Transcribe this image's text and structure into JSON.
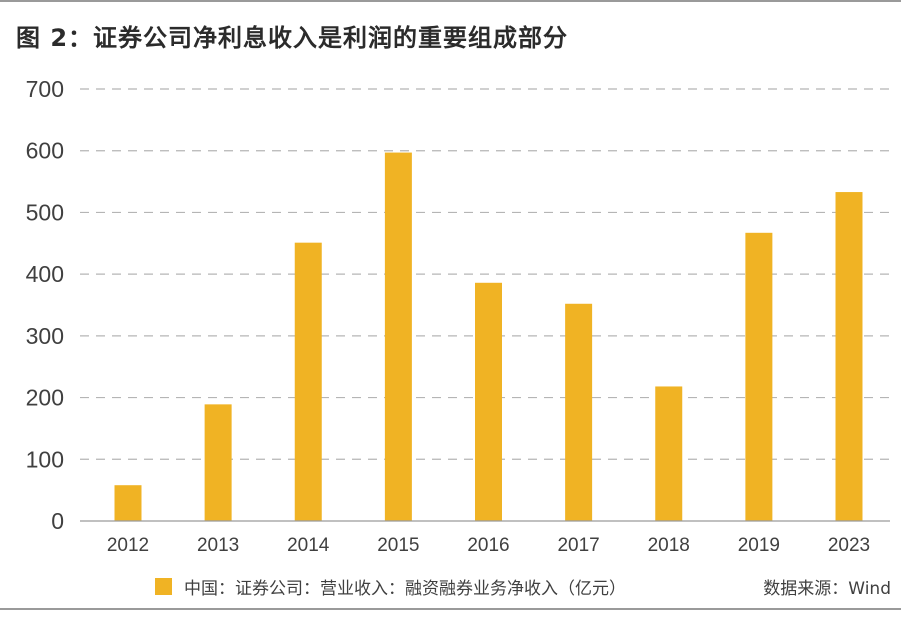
{
  "title": "图 2：证券公司净利息收入是利润的重要组成部分",
  "legend_label": "中国：证券公司：营业收入：融资融券业务净收入（亿元）",
  "source": "数据来源：Wind",
  "colors": {
    "bar": "#F0B324",
    "grid": "#b5b5b5",
    "axis": "#9a9a9a"
  },
  "chart_data": {
    "type": "bar",
    "title": "图 2：证券公司净利息收入是利润的重要组成部分",
    "xlabel": "",
    "ylabel": "",
    "categories": [
      "2012",
      "2013",
      "2014",
      "2015",
      "2016",
      "2017",
      "2018",
      "2019",
      "2023"
    ],
    "series": [
      {
        "name": "中国：证券公司：营业收入：融资融券业务净收入（亿元）",
        "values": [
          58,
          189,
          451,
          597,
          386,
          352,
          218,
          467,
          533
        ]
      }
    ],
    "yticks": [
      0,
      100,
      200,
      300,
      400,
      500,
      600,
      700
    ],
    "ylim": [
      0,
      700
    ],
    "grid": true,
    "legend_position": "bottom"
  }
}
